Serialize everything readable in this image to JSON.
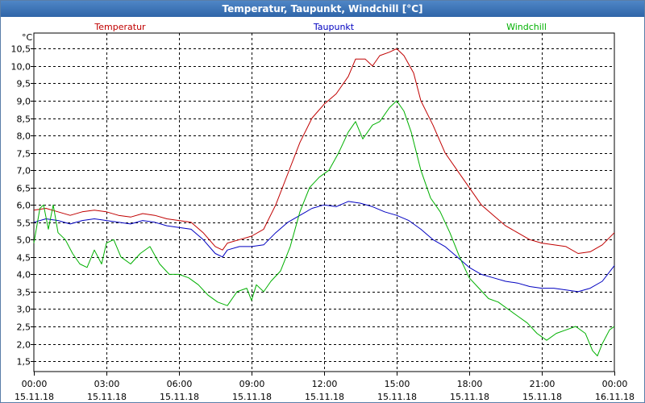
{
  "window": {
    "title": "Temperatur, Taupunkt, Windchill [°C]"
  },
  "chart_data": {
    "type": "line",
    "title": "Temperatur, Taupunkt, Windchill [°C]",
    "ylabel": "°C",
    "ylim": [
      1.2,
      10.95
    ],
    "y_ticks": [
      "1,5",
      "2,0",
      "2,5",
      "3,0",
      "3,5",
      "4,0",
      "4,5",
      "5,0",
      "5,5",
      "6,0",
      "6,5",
      "7,0",
      "7,5",
      "8,0",
      "8,5",
      "9,0",
      "9,5",
      "10,0",
      "10,5"
    ],
    "y_tick_values": [
      1.5,
      2.0,
      2.5,
      3.0,
      3.5,
      4.0,
      4.5,
      5.0,
      5.5,
      6.0,
      6.5,
      7.0,
      7.5,
      8.0,
      8.5,
      9.0,
      9.5,
      10.0,
      10.5
    ],
    "x_range_hours": [
      0,
      24
    ],
    "x_ticks": [
      {
        "hour": 0,
        "time": "00:00",
        "date": "15.11.18"
      },
      {
        "hour": 3,
        "time": "03:00",
        "date": "15.11.18"
      },
      {
        "hour": 6,
        "time": "06:00",
        "date": "15.11.18"
      },
      {
        "hour": 9,
        "time": "09:00",
        "date": "15.11.18"
      },
      {
        "hour": 12,
        "time": "12:00",
        "date": "15.11.18"
      },
      {
        "hour": 15,
        "time": "15:00",
        "date": "15.11.18"
      },
      {
        "hour": 18,
        "time": "18:00",
        "date": "15.11.18"
      },
      {
        "hour": 21,
        "time": "21:00",
        "date": "15.11.18"
      },
      {
        "hour": 24,
        "time": "00:00",
        "date": "16.11.18"
      }
    ],
    "grid": true,
    "legend": [
      {
        "name": "Temperatur",
        "color": "#c00000",
        "position": "top-left"
      },
      {
        "name": "Taupunkt",
        "color": "#0000c0",
        "position": "top-center"
      },
      {
        "name": "Windchill",
        "color": "#00b000",
        "position": "top-right"
      }
    ],
    "series": [
      {
        "name": "Temperatur",
        "color": "#c00000",
        "points": [
          [
            0,
            5.85
          ],
          [
            0.5,
            5.9
          ],
          [
            1,
            5.8
          ],
          [
            1.5,
            5.7
          ],
          [
            2,
            5.8
          ],
          [
            2.5,
            5.85
          ],
          [
            3,
            5.8
          ],
          [
            3.5,
            5.7
          ],
          [
            4,
            5.65
          ],
          [
            4.5,
            5.75
          ],
          [
            5,
            5.7
          ],
          [
            5.5,
            5.6
          ],
          [
            6,
            5.55
          ],
          [
            6.5,
            5.5
          ],
          [
            7,
            5.2
          ],
          [
            7.5,
            4.8
          ],
          [
            7.8,
            4.7
          ],
          [
            8,
            4.9
          ],
          [
            8.5,
            5.0
          ],
          [
            9,
            5.1
          ],
          [
            9.5,
            5.3
          ],
          [
            10,
            6.0
          ],
          [
            10.5,
            6.9
          ],
          [
            11,
            7.8
          ],
          [
            11.5,
            8.5
          ],
          [
            12,
            8.9
          ],
          [
            12.5,
            9.2
          ],
          [
            13,
            9.7
          ],
          [
            13.3,
            10.2
          ],
          [
            13.7,
            10.2
          ],
          [
            14,
            10.0
          ],
          [
            14.3,
            10.3
          ],
          [
            14.7,
            10.4
          ],
          [
            15,
            10.5
          ],
          [
            15.3,
            10.3
          ],
          [
            15.7,
            9.8
          ],
          [
            16,
            9.0
          ],
          [
            16.5,
            8.3
          ],
          [
            17,
            7.5
          ],
          [
            17.5,
            7.0
          ],
          [
            18,
            6.5
          ],
          [
            18.5,
            6.0
          ],
          [
            19,
            5.7
          ],
          [
            19.5,
            5.4
          ],
          [
            20,
            5.2
          ],
          [
            20.5,
            5.0
          ],
          [
            21,
            4.9
          ],
          [
            21.5,
            4.85
          ],
          [
            22,
            4.8
          ],
          [
            22.5,
            4.6
          ],
          [
            23,
            4.65
          ],
          [
            23.5,
            4.85
          ],
          [
            24,
            5.2
          ]
        ]
      },
      {
        "name": "Taupunkt",
        "color": "#0000c0",
        "points": [
          [
            0,
            5.5
          ],
          [
            0.5,
            5.6
          ],
          [
            1,
            5.55
          ],
          [
            1.5,
            5.45
          ],
          [
            2,
            5.55
          ],
          [
            2.5,
            5.6
          ],
          [
            3,
            5.55
          ],
          [
            3.5,
            5.5
          ],
          [
            4,
            5.45
          ],
          [
            4.5,
            5.55
          ],
          [
            5,
            5.5
          ],
          [
            5.5,
            5.4
          ],
          [
            6,
            5.35
          ],
          [
            6.5,
            5.3
          ],
          [
            7,
            5.0
          ],
          [
            7.5,
            4.6
          ],
          [
            7.8,
            4.5
          ],
          [
            8,
            4.7
          ],
          [
            8.5,
            4.8
          ],
          [
            9,
            4.8
          ],
          [
            9.5,
            4.85
          ],
          [
            10,
            5.2
          ],
          [
            10.5,
            5.5
          ],
          [
            11,
            5.7
          ],
          [
            11.5,
            5.9
          ],
          [
            12,
            6.0
          ],
          [
            12.5,
            5.95
          ],
          [
            13,
            6.1
          ],
          [
            13.5,
            6.05
          ],
          [
            14,
            5.95
          ],
          [
            14.5,
            5.8
          ],
          [
            15,
            5.7
          ],
          [
            15.5,
            5.55
          ],
          [
            16,
            5.3
          ],
          [
            16.5,
            5.0
          ],
          [
            17,
            4.8
          ],
          [
            17.5,
            4.5
          ],
          [
            18,
            4.2
          ],
          [
            18.5,
            4.0
          ],
          [
            19,
            3.9
          ],
          [
            19.5,
            3.8
          ],
          [
            20,
            3.75
          ],
          [
            20.5,
            3.65
          ],
          [
            21,
            3.6
          ],
          [
            21.5,
            3.6
          ],
          [
            22,
            3.55
          ],
          [
            22.5,
            3.5
          ],
          [
            23,
            3.6
          ],
          [
            23.5,
            3.8
          ],
          [
            24,
            4.25
          ]
        ]
      },
      {
        "name": "Windchill",
        "color": "#00b000",
        "points": [
          [
            0,
            4.9
          ],
          [
            0.25,
            5.9
          ],
          [
            0.4,
            6.0
          ],
          [
            0.6,
            5.3
          ],
          [
            0.8,
            6.0
          ],
          [
            1,
            5.2
          ],
          [
            1.3,
            5.0
          ],
          [
            1.6,
            4.6
          ],
          [
            1.9,
            4.3
          ],
          [
            2.2,
            4.2
          ],
          [
            2.5,
            4.7
          ],
          [
            2.8,
            4.3
          ],
          [
            3,
            4.9
          ],
          [
            3.3,
            5.0
          ],
          [
            3.6,
            4.5
          ],
          [
            4,
            4.3
          ],
          [
            4.4,
            4.6
          ],
          [
            4.8,
            4.8
          ],
          [
            5.2,
            4.3
          ],
          [
            5.6,
            4.0
          ],
          [
            6,
            4.0
          ],
          [
            6.4,
            3.9
          ],
          [
            6.8,
            3.7
          ],
          [
            7.2,
            3.4
          ],
          [
            7.6,
            3.2
          ],
          [
            8,
            3.1
          ],
          [
            8.4,
            3.5
          ],
          [
            8.8,
            3.6
          ],
          [
            9,
            3.25
          ],
          [
            9.2,
            3.7
          ],
          [
            9.5,
            3.5
          ],
          [
            9.8,
            3.8
          ],
          [
            10.2,
            4.1
          ],
          [
            10.6,
            4.8
          ],
          [
            11,
            5.8
          ],
          [
            11.4,
            6.5
          ],
          [
            11.8,
            6.8
          ],
          [
            12.2,
            7.0
          ],
          [
            12.6,
            7.5
          ],
          [
            13,
            8.1
          ],
          [
            13.3,
            8.4
          ],
          [
            13.6,
            7.9
          ],
          [
            14,
            8.3
          ],
          [
            14.3,
            8.4
          ],
          [
            14.7,
            8.8
          ],
          [
            15,
            9.0
          ],
          [
            15.3,
            8.7
          ],
          [
            15.6,
            8.1
          ],
          [
            16,
            7.0
          ],
          [
            16.4,
            6.2
          ],
          [
            16.8,
            5.8
          ],
          [
            17.2,
            5.2
          ],
          [
            17.6,
            4.5
          ],
          [
            18,
            3.9
          ],
          [
            18.4,
            3.6
          ],
          [
            18.8,
            3.3
          ],
          [
            19.2,
            3.2
          ],
          [
            19.6,
            3.0
          ],
          [
            20,
            2.8
          ],
          [
            20.4,
            2.6
          ],
          [
            20.8,
            2.3
          ],
          [
            21.2,
            2.1
          ],
          [
            21.6,
            2.3
          ],
          [
            22,
            2.4
          ],
          [
            22.4,
            2.5
          ],
          [
            22.8,
            2.3
          ],
          [
            23.1,
            1.8
          ],
          [
            23.3,
            1.65
          ],
          [
            23.5,
            2.0
          ],
          [
            23.8,
            2.4
          ],
          [
            24,
            2.5
          ]
        ]
      }
    ]
  }
}
